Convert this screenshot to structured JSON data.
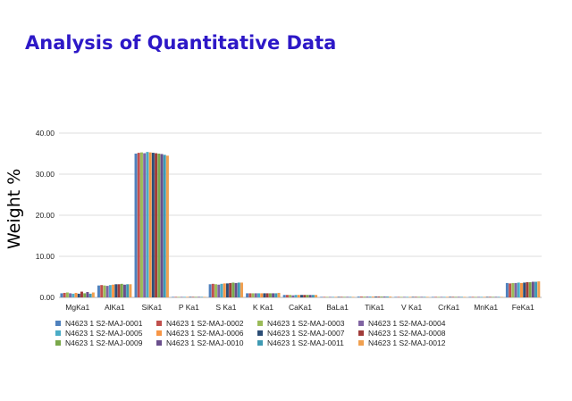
{
  "slide": {
    "title": "Analysis of Quantitative Data"
  },
  "chart_data": {
    "type": "bar",
    "ylabel": "Weight %",
    "xlabel": "",
    "ylim": [
      0,
      40
    ],
    "yticks": [
      "0.00",
      "10.00",
      "20.00",
      "30.00",
      "40.00"
    ],
    "grid": true,
    "legend_position": "bottom",
    "categories": [
      "MgKa1",
      "AlKa1",
      "SiKa1",
      "P Ka1",
      "S Ka1",
      "K Ka1",
      "CaKa1",
      "BaLa1",
      "TiKa1",
      "V Ka1",
      "CrKa1",
      "MnKa1",
      "FeKa1"
    ],
    "series": [
      {
        "name": "N4623 1 S2-MAJ-0001",
        "color": "#4f81bd",
        "values": [
          1.0,
          2.9,
          35.0,
          0.1,
          3.2,
          1.0,
          0.6,
          0.02,
          0.2,
          0.02,
          0.02,
          0.04,
          3.5
        ]
      },
      {
        "name": "N4623 1 S2-MAJ-0002",
        "color": "#c0504d",
        "values": [
          1.1,
          3.0,
          35.2,
          0.1,
          3.3,
          1.0,
          0.6,
          0.02,
          0.2,
          0.02,
          0.02,
          0.04,
          3.4
        ]
      },
      {
        "name": "N4623 1 S2-MAJ-0003",
        "color": "#9bbb59",
        "values": [
          1.2,
          2.9,
          35.3,
          0.1,
          3.2,
          1.0,
          0.6,
          0.02,
          0.2,
          0.02,
          0.02,
          0.04,
          3.5
        ]
      },
      {
        "name": "N4623 1 S2-MAJ-0004",
        "color": "#8064a2",
        "values": [
          1.0,
          2.8,
          35.1,
          0.1,
          3.1,
          1.0,
          0.5,
          0.02,
          0.2,
          0.02,
          0.02,
          0.04,
          3.5
        ]
      },
      {
        "name": "N4623 1 S2-MAJ-0005",
        "color": "#4bacc6",
        "values": [
          0.9,
          3.0,
          35.4,
          0.1,
          3.3,
          1.0,
          0.6,
          0.02,
          0.2,
          0.02,
          0.02,
          0.04,
          3.6
        ]
      },
      {
        "name": "N4623 1 S2-MAJ-0006",
        "color": "#f79646",
        "values": [
          1.1,
          3.1,
          35.3,
          0.1,
          3.4,
          1.0,
          0.6,
          0.02,
          0.2,
          0.02,
          0.02,
          0.04,
          3.5
        ]
      },
      {
        "name": "N4623 1 S2-MAJ-0007",
        "color": "#2c4d75",
        "values": [
          0.9,
          3.2,
          35.2,
          0.1,
          3.4,
          1.0,
          0.6,
          0.02,
          0.2,
          0.02,
          0.02,
          0.04,
          3.6
        ]
      },
      {
        "name": "N4623 1 S2-MAJ-0008",
        "color": "#a03c3a",
        "values": [
          1.4,
          3.2,
          35.1,
          0.1,
          3.5,
          1.0,
          0.6,
          0.02,
          0.2,
          0.02,
          0.02,
          0.04,
          3.7
        ]
      },
      {
        "name": "N4623 1 S2-MAJ-0009",
        "color": "#7aa84a",
        "values": [
          1.0,
          3.3,
          35.0,
          0.1,
          3.6,
          1.0,
          0.6,
          0.02,
          0.2,
          0.02,
          0.02,
          0.04,
          3.7
        ]
      },
      {
        "name": "N4623 1 S2-MAJ-0010",
        "color": "#6a4f8c",
        "values": [
          1.3,
          3.1,
          34.9,
          0.1,
          3.5,
          1.0,
          0.6,
          0.02,
          0.2,
          0.02,
          0.02,
          0.04,
          3.8
        ]
      },
      {
        "name": "N4623 1 S2-MAJ-0011",
        "color": "#3f9ab3",
        "values": [
          0.9,
          3.2,
          34.7,
          0.1,
          3.6,
          1.0,
          0.6,
          0.02,
          0.2,
          0.02,
          0.02,
          0.04,
          3.8
        ]
      },
      {
        "name": "N4623 1 S2-MAJ-0012",
        "color": "#f0a050",
        "values": [
          1.2,
          3.2,
          34.5,
          0.1,
          3.6,
          1.1,
          0.6,
          0.02,
          0.2,
          0.02,
          0.02,
          0.04,
          3.9
        ]
      }
    ]
  }
}
